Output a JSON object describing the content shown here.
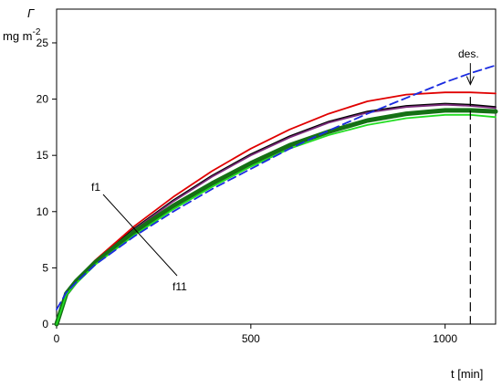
{
  "chart_data": {
    "type": "line",
    "ylabel_symbol": "Γ",
    "ylabel_unit": "mg m",
    "ylabel_sup": "-2",
    "xlabel": "t [min]",
    "xlim": [
      0,
      1130
    ],
    "ylim": [
      0,
      28
    ],
    "xticks": [
      0,
      500,
      1000
    ],
    "yticks": [
      0,
      5,
      10,
      15,
      20,
      25
    ],
    "grid": false,
    "annotations": {
      "f1": "f1",
      "f11": "f11",
      "des": "des."
    },
    "desorption_time": 1065,
    "series": [
      {
        "color": "#000000",
        "style": "solid",
        "x": [
          0,
          25,
          50,
          100,
          200,
          300,
          400,
          500,
          600,
          700,
          800,
          900,
          1000,
          1065,
          1130
        ],
        "y": [
          0,
          2.8,
          3.8,
          5.6,
          8.5,
          11.0,
          13.2,
          15.1,
          16.7,
          18.0,
          18.9,
          19.4,
          19.6,
          19.5,
          19.3
        ]
      },
      {
        "color": "#e00000",
        "style": "solid",
        "x": [
          0,
          25,
          50,
          100,
          200,
          300,
          400,
          500,
          600,
          700,
          800,
          900,
          1000,
          1065,
          1130
        ],
        "y": [
          0,
          2.9,
          3.9,
          5.7,
          8.7,
          11.3,
          13.6,
          15.6,
          17.3,
          18.7,
          19.8,
          20.4,
          20.6,
          20.6,
          20.5
        ]
      },
      {
        "color": "#7a2c7a",
        "style": "solid",
        "x": [
          0,
          25,
          50,
          100,
          200,
          300,
          400,
          500,
          600,
          700,
          800,
          900,
          1000,
          1065,
          1130
        ],
        "y": [
          0,
          2.6,
          3.7,
          5.5,
          8.4,
          10.9,
          13.1,
          15.0,
          16.6,
          17.9,
          18.8,
          19.3,
          19.5,
          19.4,
          19.2
        ]
      },
      {
        "color": "#157015",
        "style": "thick",
        "x": [
          0,
          25,
          50,
          100,
          200,
          300,
          400,
          500,
          600,
          700,
          800,
          900,
          1000,
          1065,
          1130
        ],
        "y": [
          0,
          2.7,
          3.8,
          5.5,
          8.2,
          10.5,
          12.5,
          14.3,
          15.9,
          17.1,
          18.1,
          18.7,
          19.0,
          19.0,
          18.9
        ]
      },
      {
        "color": "#22dd22",
        "style": "solid",
        "x": [
          0,
          25,
          50,
          100,
          200,
          300,
          400,
          500,
          600,
          700,
          800,
          900,
          1000,
          1065,
          1130
        ],
        "y": [
          0,
          2.6,
          3.6,
          5.3,
          7.9,
          10.2,
          12.2,
          14.0,
          15.6,
          16.8,
          17.7,
          18.3,
          18.6,
          18.6,
          18.4
        ]
      },
      {
        "color": "#1a2be0",
        "style": "dashed",
        "x": [
          0,
          25,
          50,
          100,
          200,
          300,
          400,
          500,
          600,
          700,
          800,
          900,
          1000,
          1065,
          1130
        ],
        "y": [
          1.3,
          2.8,
          3.7,
          5.3,
          7.8,
          10.0,
          12.0,
          13.8,
          15.6,
          17.2,
          18.7,
          20.1,
          21.5,
          22.3,
          23.0
        ]
      }
    ]
  }
}
